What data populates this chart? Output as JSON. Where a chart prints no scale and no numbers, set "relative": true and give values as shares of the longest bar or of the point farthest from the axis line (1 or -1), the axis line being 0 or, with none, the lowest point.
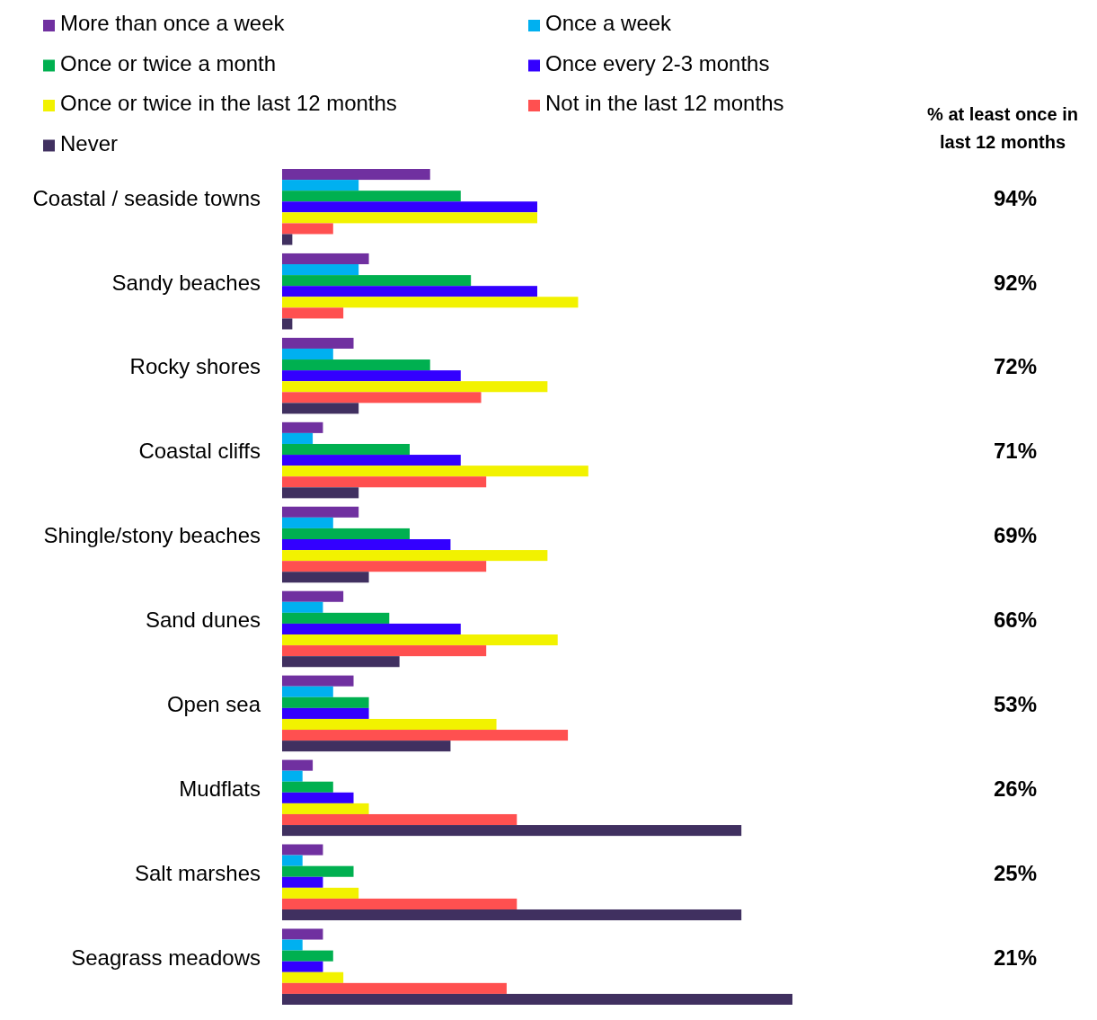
{
  "chart_data": {
    "type": "bar",
    "orientation": "horizontal",
    "relative": true,
    "legend": "top",
    "categories": [
      "Coastal / seaside towns",
      "Sandy beaches",
      "Rocky shores",
      "Coastal cliffs",
      "Shingle/stony beaches",
      "Sand dunes",
      "Open sea",
      "Mudflats",
      "Salt marshes",
      "Seagrass meadows"
    ],
    "series": [
      {
        "name": "More than once a week",
        "color": "#7030a0",
        "values": [
          0.29,
          0.17,
          0.14,
          0.08,
          0.15,
          0.12,
          0.14,
          0.06,
          0.08,
          0.08
        ]
      },
      {
        "name": "Once a week",
        "color": "#00b0f0",
        "values": [
          0.15,
          0.15,
          0.1,
          0.06,
          0.1,
          0.08,
          0.1,
          0.04,
          0.04,
          0.04
        ]
      },
      {
        "name": "Once or twice a month",
        "color": "#00b050",
        "values": [
          0.35,
          0.37,
          0.29,
          0.25,
          0.25,
          0.21,
          0.17,
          0.1,
          0.14,
          0.1
        ]
      },
      {
        "name": "Once every 2-3 months",
        "color": "#3300ff",
        "values": [
          0.5,
          0.5,
          0.35,
          0.35,
          0.33,
          0.35,
          0.17,
          0.14,
          0.08,
          0.08
        ]
      },
      {
        "name": "Once or twice in the last 12 months",
        "color": "#f2f200",
        "values": [
          0.5,
          0.58,
          0.52,
          0.6,
          0.52,
          0.54,
          0.42,
          0.17,
          0.15,
          0.12
        ]
      },
      {
        "name": "Not in the last 12 months",
        "color": "#ff5050",
        "values": [
          0.1,
          0.12,
          0.39,
          0.4,
          0.4,
          0.4,
          0.56,
          0.46,
          0.46,
          0.44
        ]
      },
      {
        "name": "Never",
        "color": "#403060",
        "values": [
          0.02,
          0.02,
          0.15,
          0.15,
          0.17,
          0.23,
          0.33,
          0.9,
          0.9,
          1
        ]
      }
    ],
    "annotations": [
      "% at least once in last 12 months",
      "94%",
      "92%",
      "72%",
      "71%",
      "69%",
      "66%",
      "53%",
      "26%",
      "25%",
      "21%"
    ]
  }
}
